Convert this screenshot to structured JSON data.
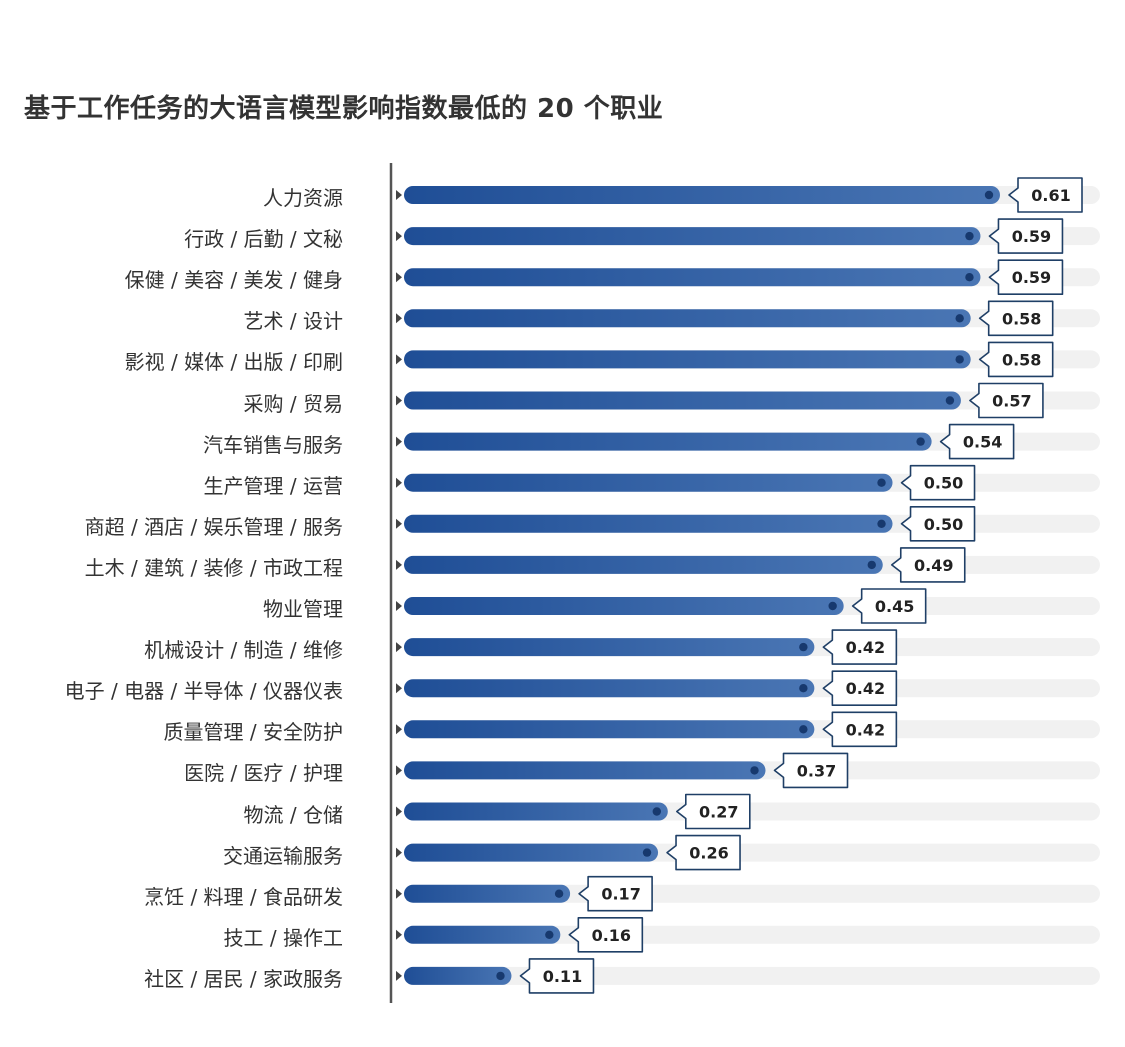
{
  "title": "基于工作任务的大语言模型影响指数最低的 20 个职业",
  "colors": {
    "bar_dark": "#1f4e96",
    "bar_light": "#4a76b4",
    "track": "#f1f1f1",
    "axis": "#555555",
    "label_border": "#1f3f66"
  },
  "chart_data": {
    "type": "bar",
    "orientation": "horizontal",
    "title": "基于工作任务的大语言模型影响指数最低的 20 个职业",
    "xlim": [
      0,
      0.7
    ],
    "grid": false,
    "categories": [
      "人力资源",
      "行政 / 后勤 / 文秘",
      "保健 / 美容 / 美发 / 健身",
      "艺术 / 设计",
      "影视 / 媒体 / 出版 / 印刷",
      "采购 / 贸易",
      "汽车销售与服务",
      "生产管理 / 运营",
      "商超 / 酒店 / 娱乐管理 / 服务",
      "土木 / 建筑 / 装修 / 市政工程",
      "物业管理",
      "机械设计 / 制造 / 维修",
      "电子 / 电器 / 半导体 / 仪器仪表",
      "质量管理 / 安全防护",
      "医院 / 医疗 / 护理",
      "物流 / 仓储",
      "交通运输服务",
      "烹饪 / 料理 / 食品研发",
      "技工 / 操作工",
      "社区 / 居民 / 家政服务"
    ],
    "values": [
      0.61,
      0.59,
      0.59,
      0.58,
      0.58,
      0.57,
      0.54,
      0.5,
      0.5,
      0.49,
      0.45,
      0.42,
      0.42,
      0.42,
      0.37,
      0.27,
      0.26,
      0.17,
      0.16,
      0.11
    ],
    "value_labels": [
      "0.61",
      "0.59",
      "0.59",
      "0.58",
      "0.58",
      "0.57",
      "0.54",
      "0.50",
      "0.50",
      "0.49",
      "0.45",
      "0.42",
      "0.42",
      "0.42",
      "0.37",
      "0.27",
      "0.26",
      "0.17",
      "0.16",
      "0.11"
    ]
  }
}
